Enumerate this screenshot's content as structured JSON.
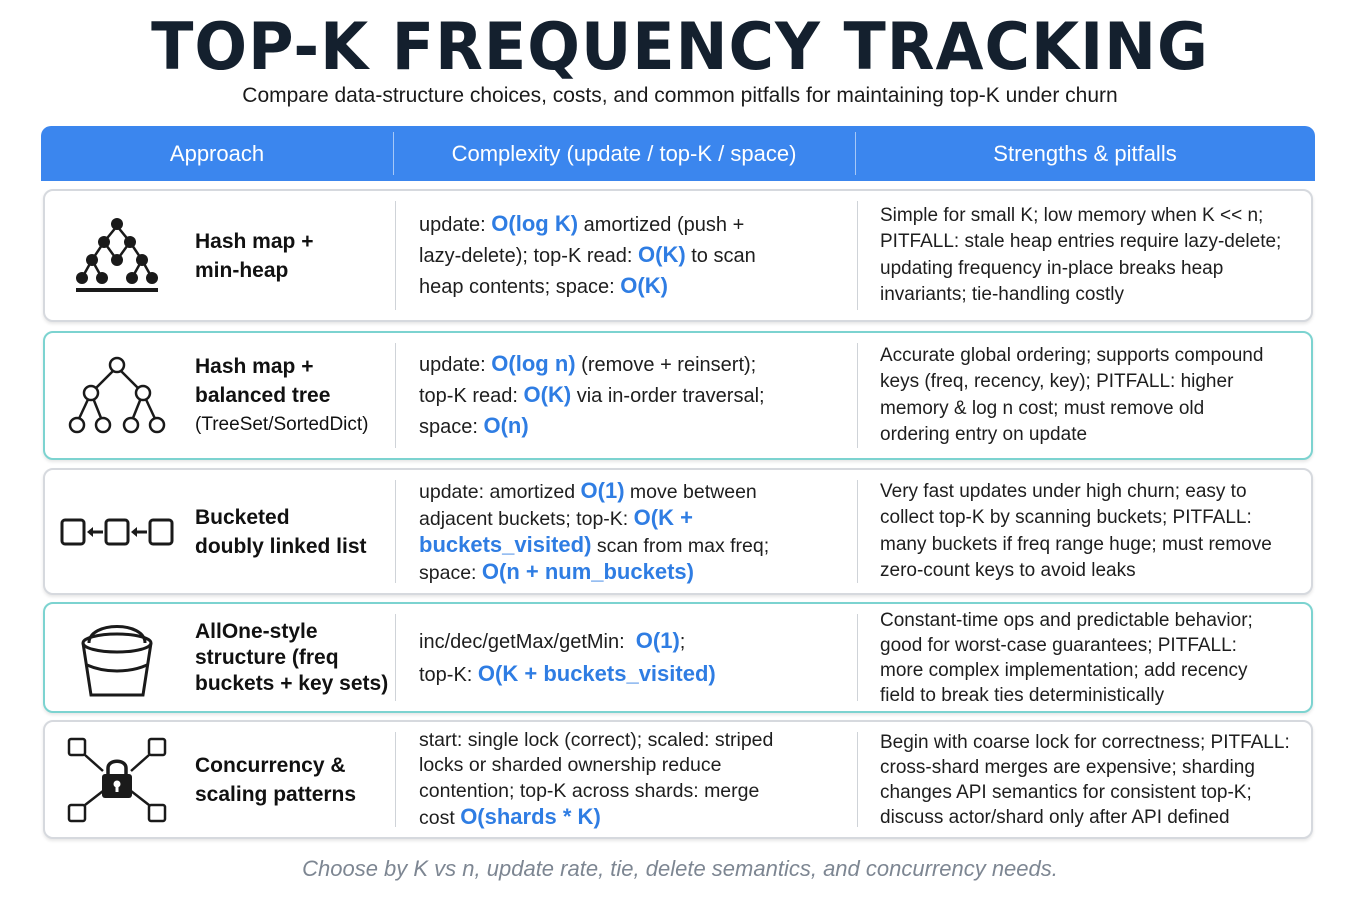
{
  "title": "TOP-K FREQUENCY TRACKING",
  "subtitle": "Compare data-structure choices, costs, and common pitfalls for maintaining top-K under churn",
  "headers": {
    "approach": "Approach",
    "complexity": "Complexity (update / top-K / space)",
    "strengths": "Strengths & pitfalls"
  },
  "rows": [
    {
      "icon": "heap-icon",
      "name": [
        "Hash map +",
        "min-heap"
      ],
      "sub": "",
      "complexity": [
        [
          {
            "t": "update: "
          },
          {
            "t": "O(log K)",
            "b": true
          },
          {
            "t": " amortized (push +"
          }
        ],
        [
          {
            "t": "lazy-delete); top-K read: "
          },
          {
            "t": "O(K)",
            "b": true
          },
          {
            "t": " to scan"
          }
        ],
        [
          {
            "t": "heap contents; space: "
          },
          {
            "t": "O(K)",
            "b": true
          }
        ]
      ],
      "strengths": [
        "Simple for small K; low memory when K << n;",
        "PITFALL: stale heap entries require lazy-delete;",
        "updating frequency in-place breaks heap",
        "invariants; tie-handling costly"
      ]
    },
    {
      "icon": "balanced-tree-icon",
      "name": [
        "Hash map +",
        "balanced tree"
      ],
      "sub": "(TreeSet/SortedDict)",
      "complexity": [
        [
          {
            "t": "update: "
          },
          {
            "t": "O(log n)",
            "b": true
          },
          {
            "t": " (remove + reinsert);"
          }
        ],
        [
          {
            "t": "top-K read: "
          },
          {
            "t": "O(K)",
            "b": true
          },
          {
            "t": " via in-order traversal;"
          }
        ],
        [
          {
            "t": "space: "
          },
          {
            "t": "O(n)",
            "b": true
          }
        ]
      ],
      "strengths": [
        "Accurate global ordering; supports compound",
        "keys (freq, recency, key); PITFALL: higher",
        "memory & log n cost; must remove old",
        "ordering entry on update"
      ]
    },
    {
      "icon": "linked-list-icon",
      "name": [
        "Bucketed",
        "doubly linked list"
      ],
      "sub": "",
      "complexity": [
        [
          {
            "t": "update: amortized "
          },
          {
            "t": "O(1)",
            "b": true
          },
          {
            "t": " move between"
          }
        ],
        [
          {
            "t": "adjacent buckets; top-K: "
          },
          {
            "t": "O(K +",
            "b": true
          }
        ],
        [
          {
            "t": "buckets_visited)",
            "b": true
          },
          {
            "t": " scan from max freq;"
          }
        ],
        [
          {
            "t": "space: "
          },
          {
            "t": "O(n + num_buckets)",
            "b": true
          }
        ]
      ],
      "strengths": [
        "Very fast updates under high churn; easy to",
        "collect top-K by scanning buckets; PITFALL:",
        "many buckets if freq range huge; must remove",
        "zero-count keys to avoid leaks"
      ]
    },
    {
      "icon": "bucket-icon",
      "name": [
        "AllOne-style",
        "structure (freq",
        "buckets + key sets)"
      ],
      "sub": "",
      "complexity": [
        [
          {
            "t": "inc/dec/getMax/getMin:  "
          },
          {
            "t": "O(1)",
            "b": true
          },
          {
            "t": ";"
          }
        ],
        [
          {
            "t": "top-K: "
          },
          {
            "t": "O(K + buckets_visited)",
            "b": true
          }
        ]
      ],
      "strengths": [
        "Constant-time ops and predictable behavior;",
        "good for worst-case guarantees; PITFALL:",
        "more complex implementation; add recency",
        "field to break ties deterministically"
      ]
    },
    {
      "icon": "lock-network-icon",
      "name": [
        "Concurrency &",
        "scaling patterns"
      ],
      "sub": "",
      "complexity": [
        [
          {
            "t": "start: single lock (correct); scaled: striped"
          }
        ],
        [
          {
            "t": "locks or sharded ownership reduce"
          }
        ],
        [
          {
            "t": "contention; top-K across shards: merge"
          }
        ],
        [
          {
            "t": "cost "
          },
          {
            "t": "O(shards * K)",
            "b": true
          }
        ]
      ],
      "strengths": [
        "Begin with coarse lock for correctness; PITFALL:",
        "cross-shard merges are expensive; sharding",
        "changes API semantics for consistent top-K;",
        "discuss actor/shard only after API defined"
      ]
    }
  ],
  "footer": "Choose by K vs n, update rate, tie, delete semantics, and concurrency needs.",
  "colors": {
    "header": "#3b86ee",
    "accent": "#2f7de3",
    "teal_border": "#7cd3d0"
  }
}
